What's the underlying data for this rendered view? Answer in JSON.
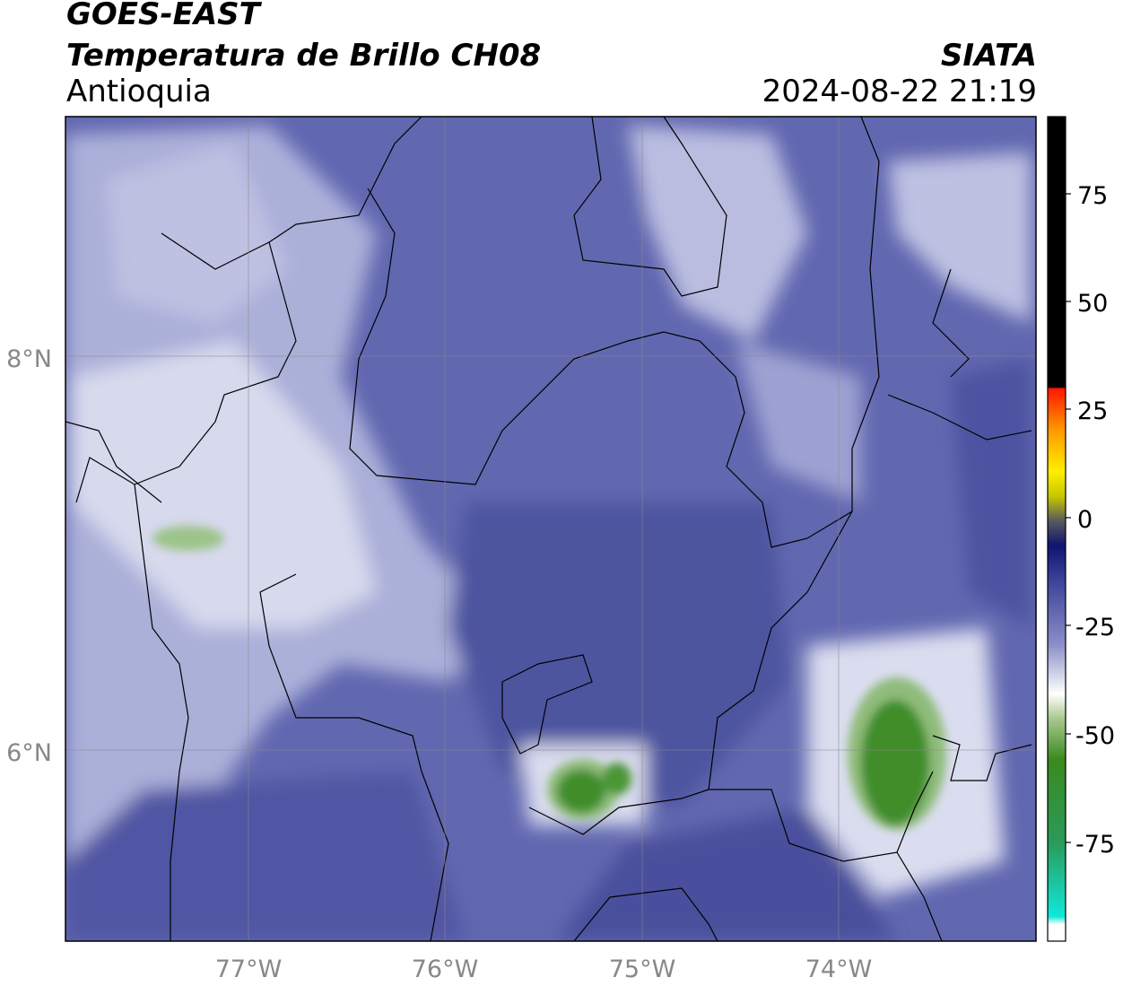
{
  "header": {
    "satellite": "GOES-EAST",
    "product": "Temperatura de Brillo CH08",
    "region": "Antioquia",
    "org": "SIATA",
    "datetime": "2024-08-22 21:19"
  },
  "map": {
    "lat_labels": [
      "8°N",
      "6°N"
    ],
    "lon_labels": [
      "77°W",
      "76°W",
      "75°W",
      "74°W"
    ]
  },
  "colorbar": {
    "ticks": [
      "75",
      "50",
      "25",
      "0",
      "-25",
      "-50",
      "-75"
    ],
    "colors": {
      "black": "#000000",
      "red": "#ff1a00",
      "orange": "#ff9900",
      "yellow": "#ffee00",
      "navy": "#151a78",
      "blue": "#4a52a8",
      "white": "#ffffff",
      "green": "#3a8a1e",
      "cyan": "#10e8d8"
    }
  },
  "colors": {
    "background_blue": "#6268b0",
    "cold_cloud_green": "#3f8d2a"
  }
}
